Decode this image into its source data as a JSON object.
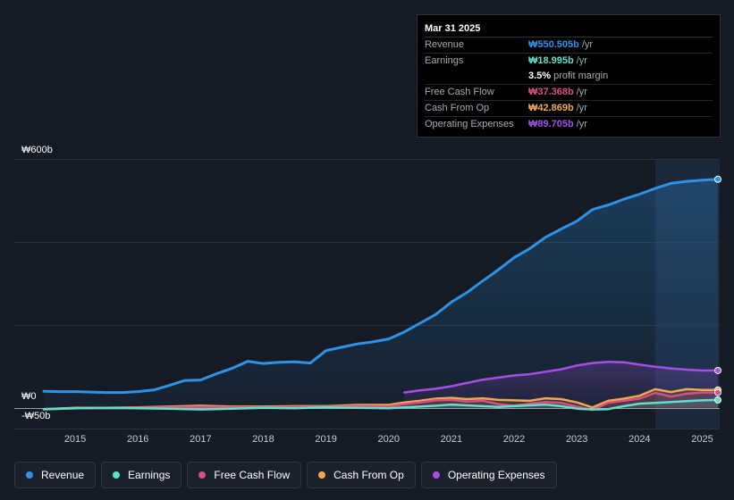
{
  "tooltip": {
    "date": "Mar 31 2025",
    "rows": [
      {
        "label": "Revenue",
        "value": "₩550.505b",
        "unit": "/yr",
        "color": "#2e93e6"
      },
      {
        "label": "Earnings",
        "value": "₩18.995b",
        "unit": "/yr",
        "color": "#5fe0cc"
      },
      {
        "label": "Free Cash Flow",
        "value": "₩37.368b",
        "unit": "/yr",
        "color": "#d64f86"
      },
      {
        "label": "Cash From Op",
        "value": "₩42.869b",
        "unit": "/yr",
        "color": "#f0a94e"
      },
      {
        "label": "Operating Expenses",
        "value": "₩89.705b",
        "unit": "/yr",
        "color": "#a54fe8"
      }
    ],
    "margin": {
      "value": "3.5%",
      "text": "profit margin"
    }
  },
  "legend": [
    {
      "label": "Revenue",
      "color": "#2e93e6"
    },
    {
      "label": "Earnings",
      "color": "#5fe0cc"
    },
    {
      "label": "Free Cash Flow",
      "color": "#d64f86"
    },
    {
      "label": "Cash From Op",
      "color": "#f0a94e"
    },
    {
      "label": "Operating Expenses",
      "color": "#a54fe8"
    }
  ],
  "chart_data": {
    "type": "line",
    "title": "",
    "xlabel": "",
    "ylabel": "",
    "y_top_label": "₩600b",
    "y_zero_label": "₩0",
    "y_bottom_label": "-₩50b",
    "ylim": [
      -50,
      600
    ],
    "xlim": [
      2014.5,
      2025.25
    ],
    "x_ticks": [
      2015,
      2016,
      2017,
      2018,
      2019,
      2020,
      2021,
      2022,
      2023,
      2024,
      2025
    ],
    "x_tick_labels": [
      "2015",
      "2016",
      "2017",
      "2018",
      "2019",
      "2020",
      "2021",
      "2022",
      "2023",
      "2024",
      "2025"
    ],
    "gridlines_y": [
      600,
      400,
      200,
      0
    ],
    "highlight_from": 2024.25,
    "series": [
      {
        "name": "Revenue",
        "color": "#2e93e6",
        "area": true,
        "points": [
          [
            2014.5,
            40
          ],
          [
            2014.75,
            39
          ],
          [
            2015.0,
            39
          ],
          [
            2015.25,
            38
          ],
          [
            2015.5,
            37
          ],
          [
            2015.75,
            37
          ],
          [
            2016.0,
            39
          ],
          [
            2016.25,
            43
          ],
          [
            2016.5,
            54
          ],
          [
            2016.75,
            66
          ],
          [
            2017.0,
            67
          ],
          [
            2017.25,
            82
          ],
          [
            2017.5,
            95
          ],
          [
            2017.75,
            112
          ],
          [
            2018.0,
            107
          ],
          [
            2018.25,
            110
          ],
          [
            2018.5,
            111
          ],
          [
            2018.75,
            108
          ],
          [
            2019.0,
            138
          ],
          [
            2019.25,
            146
          ],
          [
            2019.5,
            154
          ],
          [
            2019.75,
            159
          ],
          [
            2020.0,
            166
          ],
          [
            2020.25,
            183
          ],
          [
            2020.5,
            204
          ],
          [
            2020.75,
            225
          ],
          [
            2021.0,
            255
          ],
          [
            2021.25,
            278
          ],
          [
            2021.5,
            306
          ],
          [
            2021.75,
            333
          ],
          [
            2022.0,
            362
          ],
          [
            2022.25,
            384
          ],
          [
            2022.5,
            411
          ],
          [
            2022.75,
            431
          ],
          [
            2023.0,
            450
          ],
          [
            2023.25,
            478
          ],
          [
            2023.5,
            489
          ],
          [
            2023.75,
            503
          ],
          [
            2024.0,
            515
          ],
          [
            2024.25,
            529
          ],
          [
            2024.5,
            541
          ],
          [
            2024.75,
            546
          ],
          [
            2025.0,
            549
          ],
          [
            2025.25,
            551
          ]
        ]
      },
      {
        "name": "Operating Expenses",
        "color": "#a54fe8",
        "area": true,
        "points": [
          [
            2020.25,
            37
          ],
          [
            2020.5,
            42
          ],
          [
            2020.75,
            46
          ],
          [
            2021.0,
            52
          ],
          [
            2021.25,
            60
          ],
          [
            2021.5,
            68
          ],
          [
            2021.75,
            73
          ],
          [
            2022.0,
            78
          ],
          [
            2022.25,
            81
          ],
          [
            2022.5,
            87
          ],
          [
            2022.75,
            93
          ],
          [
            2023.0,
            102
          ],
          [
            2023.25,
            108
          ],
          [
            2023.5,
            111
          ],
          [
            2023.75,
            110
          ],
          [
            2024.0,
            104
          ],
          [
            2024.25,
            99
          ],
          [
            2024.5,
            95
          ],
          [
            2024.75,
            92
          ],
          [
            2025.0,
            90
          ],
          [
            2025.25,
            90
          ]
        ]
      },
      {
        "name": "Cash From Op",
        "color": "#f0a94e",
        "area": true,
        "points": [
          [
            2014.5,
            -3
          ],
          [
            2015.0,
            0
          ],
          [
            2015.5,
            0
          ],
          [
            2016.0,
            1
          ],
          [
            2016.5,
            3
          ],
          [
            2017.0,
            5
          ],
          [
            2017.5,
            3
          ],
          [
            2018.0,
            3
          ],
          [
            2018.5,
            4
          ],
          [
            2019.0,
            4
          ],
          [
            2019.5,
            7
          ],
          [
            2020.0,
            7
          ],
          [
            2020.25,
            13
          ],
          [
            2020.5,
            17
          ],
          [
            2020.75,
            22
          ],
          [
            2021.0,
            24
          ],
          [
            2021.25,
            21
          ],
          [
            2021.5,
            23
          ],
          [
            2021.75,
            19
          ],
          [
            2022.0,
            18
          ],
          [
            2022.25,
            17
          ],
          [
            2022.5,
            23
          ],
          [
            2022.75,
            21
          ],
          [
            2023.0,
            13
          ],
          [
            2023.25,
            1
          ],
          [
            2023.5,
            17
          ],
          [
            2023.75,
            22
          ],
          [
            2024.0,
            29
          ],
          [
            2024.25,
            45
          ],
          [
            2024.5,
            38
          ],
          [
            2024.75,
            45
          ],
          [
            2025.0,
            43
          ],
          [
            2025.25,
            43
          ]
        ]
      },
      {
        "name": "Free Cash Flow",
        "color": "#d64f86",
        "area": true,
        "points": [
          [
            2014.5,
            -4
          ],
          [
            2015.0,
            -1
          ],
          [
            2015.5,
            -1
          ],
          [
            2016.0,
            0
          ],
          [
            2016.5,
            1
          ],
          [
            2017.0,
            2
          ],
          [
            2017.5,
            1
          ],
          [
            2018.0,
            1
          ],
          [
            2018.5,
            2
          ],
          [
            2019.0,
            2
          ],
          [
            2019.5,
            4
          ],
          [
            2020.0,
            3
          ],
          [
            2020.25,
            9
          ],
          [
            2020.5,
            13
          ],
          [
            2020.75,
            18
          ],
          [
            2021.0,
            19
          ],
          [
            2021.25,
            15
          ],
          [
            2021.5,
            17
          ],
          [
            2021.75,
            9
          ],
          [
            2022.0,
            5
          ],
          [
            2022.25,
            10
          ],
          [
            2022.5,
            14
          ],
          [
            2022.75,
            12
          ],
          [
            2023.0,
            3
          ],
          [
            2023.25,
            -5
          ],
          [
            2023.5,
            12
          ],
          [
            2023.75,
            17
          ],
          [
            2024.0,
            22
          ],
          [
            2024.25,
            36
          ],
          [
            2024.5,
            27
          ],
          [
            2024.75,
            34
          ],
          [
            2025.0,
            37
          ],
          [
            2025.25,
            37
          ]
        ]
      },
      {
        "name": "Earnings",
        "color": "#5fe0cc",
        "area": true,
        "points": [
          [
            2014.5,
            -3
          ],
          [
            2015.0,
            -1
          ],
          [
            2015.5,
            0
          ],
          [
            2016.0,
            -1
          ],
          [
            2016.5,
            -2
          ],
          [
            2017.0,
            -4
          ],
          [
            2017.5,
            -2
          ],
          [
            2018.0,
            0
          ],
          [
            2018.5,
            -1
          ],
          [
            2019.0,
            1
          ],
          [
            2019.5,
            0
          ],
          [
            2020.0,
            -1
          ],
          [
            2020.25,
            1
          ],
          [
            2020.5,
            3
          ],
          [
            2020.75,
            5
          ],
          [
            2021.0,
            8
          ],
          [
            2021.25,
            6
          ],
          [
            2021.5,
            4
          ],
          [
            2021.75,
            2
          ],
          [
            2022.0,
            4
          ],
          [
            2022.25,
            6
          ],
          [
            2022.5,
            8
          ],
          [
            2022.75,
            4
          ],
          [
            2023.0,
            -2
          ],
          [
            2023.25,
            -4
          ],
          [
            2023.5,
            -3
          ],
          [
            2023.75,
            4
          ],
          [
            2024.0,
            10
          ],
          [
            2024.25,
            12
          ],
          [
            2024.5,
            14
          ],
          [
            2024.75,
            16
          ],
          [
            2025.0,
            18
          ],
          [
            2025.25,
            19
          ]
        ]
      }
    ]
  }
}
